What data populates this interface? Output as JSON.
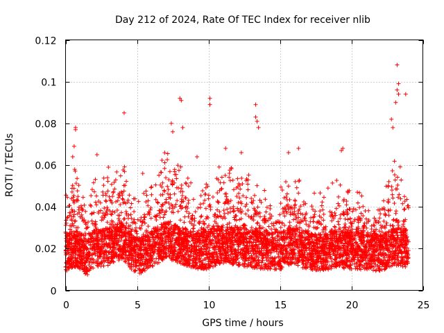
{
  "chart_data": {
    "type": "scatter",
    "title": "Day 212 of 2024, Rate Of TEC Index for receiver nlib",
    "xlabel": "GPS time / hours",
    "ylabel": "ROTI / TECUs",
    "xlim": [
      0,
      25
    ],
    "ylim": [
      0,
      0.12
    ],
    "grid": true,
    "marker": "plus",
    "series_color": "#ff0000",
    "x_ticks": [
      {
        "value": 0,
        "label": "0"
      },
      {
        "value": 5,
        "label": "5"
      },
      {
        "value": 10,
        "label": "10"
      },
      {
        "value": 15,
        "label": "15"
      },
      {
        "value": 20,
        "label": "20"
      },
      {
        "value": 25,
        "label": "25"
      }
    ],
    "y_ticks": [
      {
        "value": 0,
        "label": "0"
      },
      {
        "value": 0.02,
        "label": "0.02"
      },
      {
        "value": 0.04,
        "label": "0.04"
      },
      {
        "value": 0.06,
        "label": "0.06"
      },
      {
        "value": 0.08,
        "label": "0.08"
      },
      {
        "value": 0.1,
        "label": "0.1"
      },
      {
        "value": 0.12,
        "label": "0.12"
      }
    ],
    "data_range_x": [
      0,
      24
    ],
    "series": [
      {
        "name": "ROTI",
        "notable_points": [
          {
            "x": 0.7,
            "y": 0.078
          },
          {
            "x": 0.7,
            "y": 0.077
          },
          {
            "x": 4.1,
            "y": 0.085
          },
          {
            "x": 7.4,
            "y": 0.08
          },
          {
            "x": 7.5,
            "y": 0.076
          },
          {
            "x": 8.0,
            "y": 0.092
          },
          {
            "x": 8.1,
            "y": 0.091
          },
          {
            "x": 8.2,
            "y": 0.078
          },
          {
            "x": 10.1,
            "y": 0.092
          },
          {
            "x": 10.1,
            "y": 0.089
          },
          {
            "x": 13.3,
            "y": 0.089
          },
          {
            "x": 13.3,
            "y": 0.083
          },
          {
            "x": 13.4,
            "y": 0.081
          },
          {
            "x": 13.5,
            "y": 0.078
          },
          {
            "x": 23.2,
            "y": 0.108
          },
          {
            "x": 23.3,
            "y": 0.099
          },
          {
            "x": 23.2,
            "y": 0.096
          },
          {
            "x": 23.3,
            "y": 0.094
          },
          {
            "x": 23.8,
            "y": 0.094
          },
          {
            "x": 23.1,
            "y": 0.09
          },
          {
            "x": 22.8,
            "y": 0.082
          },
          {
            "x": 22.9,
            "y": 0.078
          },
          {
            "x": 15.6,
            "y": 0.066
          },
          {
            "x": 16.3,
            "y": 0.068
          },
          {
            "x": 19.4,
            "y": 0.068
          },
          {
            "x": 19.3,
            "y": 0.067
          },
          {
            "x": 0.5,
            "y": 0.064
          },
          {
            "x": 0.6,
            "y": 0.069
          },
          {
            "x": 11.2,
            "y": 0.068
          },
          {
            "x": 12.3,
            "y": 0.066
          },
          {
            "x": 9.2,
            "y": 0.064
          },
          {
            "x": 2.2,
            "y": 0.065
          },
          {
            "x": 3.0,
            "y": 0.059
          },
          {
            "x": 5.4,
            "y": 0.056
          }
        ],
        "band_profile": [
          {
            "x": 0,
            "base": 0.018,
            "upper": 0.04
          },
          {
            "x": 0.5,
            "base": 0.02,
            "upper": 0.048
          },
          {
            "x": 1.0,
            "base": 0.019,
            "upper": 0.045
          },
          {
            "x": 1.5,
            "base": 0.016,
            "upper": 0.03
          },
          {
            "x": 2.0,
            "base": 0.02,
            "upper": 0.042
          },
          {
            "x": 3.0,
            "base": 0.021,
            "upper": 0.045
          },
          {
            "x": 4.0,
            "base": 0.024,
            "upper": 0.052
          },
          {
            "x": 5.0,
            "base": 0.016,
            "upper": 0.03
          },
          {
            "x": 6.0,
            "base": 0.02,
            "upper": 0.04
          },
          {
            "x": 7.0,
            "base": 0.024,
            "upper": 0.056
          },
          {
            "x": 8.0,
            "base": 0.022,
            "upper": 0.048
          },
          {
            "x": 9.0,
            "base": 0.019,
            "upper": 0.038
          },
          {
            "x": 10.0,
            "base": 0.019,
            "upper": 0.04
          },
          {
            "x": 11.0,
            "base": 0.022,
            "upper": 0.05
          },
          {
            "x": 12.0,
            "base": 0.021,
            "upper": 0.046
          },
          {
            "x": 13.0,
            "base": 0.02,
            "upper": 0.044
          },
          {
            "x": 14.0,
            "base": 0.019,
            "upper": 0.036
          },
          {
            "x": 15.0,
            "base": 0.019,
            "upper": 0.038
          },
          {
            "x": 16.0,
            "base": 0.021,
            "upper": 0.044
          },
          {
            "x": 17.0,
            "base": 0.019,
            "upper": 0.036
          },
          {
            "x": 18.0,
            "base": 0.018,
            "upper": 0.035
          },
          {
            "x": 19.0,
            "base": 0.02,
            "upper": 0.042
          },
          {
            "x": 20.0,
            "base": 0.019,
            "upper": 0.036
          },
          {
            "x": 21.0,
            "base": 0.019,
            "upper": 0.034
          },
          {
            "x": 22.0,
            "base": 0.018,
            "upper": 0.034
          },
          {
            "x": 23.0,
            "base": 0.021,
            "upper": 0.05
          },
          {
            "x": 24.0,
            "base": 0.02,
            "upper": 0.044
          }
        ]
      }
    ]
  }
}
